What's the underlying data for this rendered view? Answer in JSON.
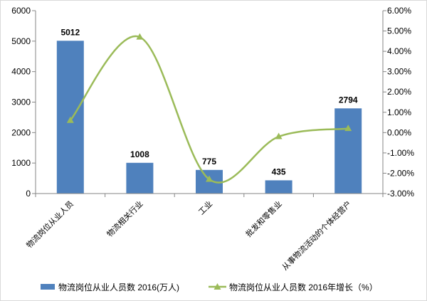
{
  "chart_data": {
    "type": "bar",
    "categories": [
      "物流岗位从业人员",
      "物流相关行业",
      "工业",
      "批发和零售业",
      "从事物流活动的个体经营户"
    ],
    "series": [
      {
        "name": "物流岗位从业人员数 2016(万人)",
        "type": "bar",
        "axis": "left",
        "values": [
          5012,
          1008,
          775,
          435,
          2794
        ],
        "color": "#4F81BD",
        "data_labels": true
      },
      {
        "name": "物流岗位从业人员数 2016年增长（%）",
        "type": "line",
        "axis": "right",
        "values": [
          0.6,
          4.7,
          -2.3,
          -0.2,
          0.2
        ],
        "color": "#9BBB59",
        "marker": "triangle",
        "smooth": true
      }
    ],
    "ylim": [
      0,
      6000
    ],
    "yticks": [
      "0",
      "1000",
      "2000",
      "3000",
      "4000",
      "5000",
      "6000"
    ],
    "y2lim": [
      -3,
      6
    ],
    "y2ticks": [
      "-3.00%",
      "-2.00%",
      "-1.00%",
      "0.00%",
      "1.00%",
      "2.00%",
      "3.00%",
      "4.00%",
      "5.00%",
      "6.00%"
    ],
    "grid": false,
    "legend": "bottom"
  }
}
